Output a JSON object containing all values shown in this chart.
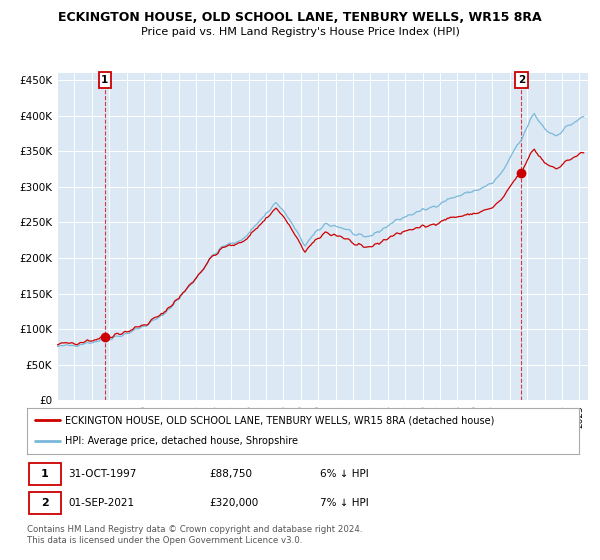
{
  "title1": "ECKINGTON HOUSE, OLD SCHOOL LANE, TENBURY WELLS, WR15 8RA",
  "title2": "Price paid vs. HM Land Registry's House Price Index (HPI)",
  "ylabel_ticks": [
    "£0",
    "£50K",
    "£100K",
    "£150K",
    "£200K",
    "£250K",
    "£300K",
    "£350K",
    "£400K",
    "£450K"
  ],
  "ytick_values": [
    0,
    50000,
    100000,
    150000,
    200000,
    250000,
    300000,
    350000,
    400000,
    450000
  ],
  "ylim": [
    0,
    460000
  ],
  "sale1_date": "1997-10-01",
  "sale1_price": 88750,
  "sale2_date": "2021-09-01",
  "sale2_price": 320000,
  "hpi_color": "#7ab8d9",
  "price_color": "#cc0000",
  "bg_color": "#dce9f5",
  "grid_color": "#ffffff",
  "legend_label_red": "ECKINGTON HOUSE, OLD SCHOOL LANE, TENBURY WELLS, WR15 8RA (detached house)",
  "legend_label_blue": "HPI: Average price, detached house, Shropshire",
  "footer": "Contains HM Land Registry data © Crown copyright and database right 2024.\nThis data is licensed under the Open Government Licence v3.0."
}
